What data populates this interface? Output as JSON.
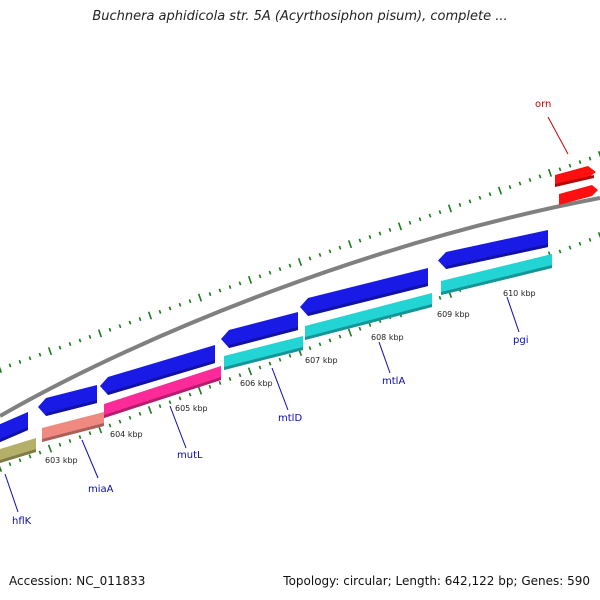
{
  "title": "Buchnera aphidicola str. 5A (Acyrthosiphon pisum), complete ...",
  "footer": {
    "accession": "Accession: NC_011833",
    "summary": "Topology: circular; Length: 642,122 bp; Genes: 590"
  },
  "colors": {
    "backbone": "#808080",
    "tick": "#1a7a1a",
    "cds_forward": "#1a1ae6",
    "gene_label": "#0b0bb0",
    "highlight_label": "#cc0000"
  },
  "kbp_labels": [
    "603 kbp",
    "604 kbp",
    "605 kbp",
    "606 kbp",
    "607 kbp",
    "608 kbp",
    "609 kbp",
    "610 kbp"
  ],
  "genes": [
    {
      "label": "hflK",
      "color": "#b4b06a",
      "strand": "reverse",
      "label_color": "#0b0bb0"
    },
    {
      "label": "miaA",
      "color": "#f08a80",
      "strand": "reverse",
      "label_color": "#0b0bb0"
    },
    {
      "label": "mutL",
      "color": "#ff2a9a",
      "strand": "reverse",
      "label_color": "#0b0bb0"
    },
    {
      "label": "mtlD",
      "color": "#22d4d4",
      "strand": "reverse",
      "label_color": "#0b0bb0"
    },
    {
      "label": "mtlA",
      "color": "#22d4d4",
      "strand": "reverse",
      "label_color": "#0b0bb0"
    },
    {
      "label": "pgi",
      "color": "#22d4d4",
      "strand": "reverse",
      "label_color": "#0b0bb0"
    },
    {
      "label": "orn",
      "color": "#ff1010",
      "strand": "forward",
      "label_color": "#cc0000"
    }
  ]
}
